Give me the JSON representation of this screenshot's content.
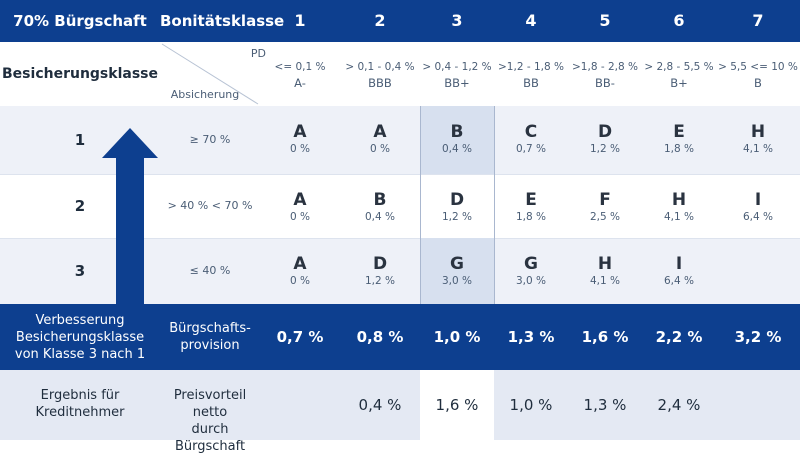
{
  "header": {
    "title": "70% Bürgschaft",
    "class_label": "Bonitätsklasse",
    "columns": [
      "1",
      "2",
      "3",
      "4",
      "5",
      "6",
      "7"
    ]
  },
  "subheader": {
    "securing_class": "Besicherungsklasse",
    "pd_label": "PD",
    "absicherung_label": "Absicherung",
    "pd_ranges": [
      "<= 0,1 %",
      "> 0,1 - 0,4 %",
      "> 0,4 - 1,2 %",
      ">1,2 - 1,8 %",
      ">1,8 - 2,8 %",
      "> 2,8 - 5,5 %",
      "> 5,5 <= 10 %"
    ],
    "ratings": [
      "A-",
      "BBB",
      "BB+",
      "BB",
      "BB-",
      "B+",
      "B"
    ]
  },
  "rows": [
    {
      "label": "1",
      "absicherung": "≥ 70 %",
      "cells": [
        {
          "grade": "A",
          "value": "0 %"
        },
        {
          "grade": "A",
          "value": "0 %"
        },
        {
          "grade": "B",
          "value": "0,4 %"
        },
        {
          "grade": "C",
          "value": "0,7 %"
        },
        {
          "grade": "D",
          "value": "1,2 %"
        },
        {
          "grade": "E",
          "value": "1,8 %"
        },
        {
          "grade": "H",
          "value": "4,1 %"
        }
      ]
    },
    {
      "label": "2",
      "absicherung": "> 40 % < 70 %",
      "cells": [
        {
          "grade": "A",
          "value": "0 %"
        },
        {
          "grade": "B",
          "value": "0,4 %"
        },
        {
          "grade": "D",
          "value": "1,2 %"
        },
        {
          "grade": "E",
          "value": "1,8 %"
        },
        {
          "grade": "F",
          "value": "2,5 %"
        },
        {
          "grade": "H",
          "value": "4,1 %"
        },
        {
          "grade": "I",
          "value": "6,4 %"
        }
      ]
    },
    {
      "label": "3",
      "absicherung": "≤ 40 %",
      "cells": [
        {
          "grade": "A",
          "value": "0 %"
        },
        {
          "grade": "D",
          "value": "1,2 %"
        },
        {
          "grade": "G",
          "value": "3,0 %"
        },
        {
          "grade": "G",
          "value": "3,0 %"
        },
        {
          "grade": "H",
          "value": "4,1 %"
        },
        {
          "grade": "I",
          "value": "6,4 %"
        },
        {
          "grade": "",
          "value": ""
        }
      ]
    }
  ],
  "provision": {
    "left_label": [
      "Verbesserung",
      "Besicherungsklasse",
      "von Klasse 3 nach 1"
    ],
    "label": [
      "Bürgschafts-",
      "provision"
    ],
    "values": [
      "0,7 %",
      "0,8 %",
      "1,0 %",
      "1,3 %",
      "1,6 %",
      "2,2 %",
      "3,2 %"
    ]
  },
  "result": {
    "left_label": [
      "Ergebnis für",
      "Kreditnehmer"
    ],
    "label": [
      "Preisvorteil netto",
      "durch Bürgschaft"
    ],
    "values": [
      "",
      "0,4 %",
      "1,6 %",
      "1,0 %",
      "1,3 %",
      "2,4 %",
      ""
    ]
  },
  "colors": {
    "navy": "#0d3f8f",
    "light_row": "#eef1f8",
    "highlight": "#d7e0ef",
    "result_row": "#e4e9f3"
  }
}
